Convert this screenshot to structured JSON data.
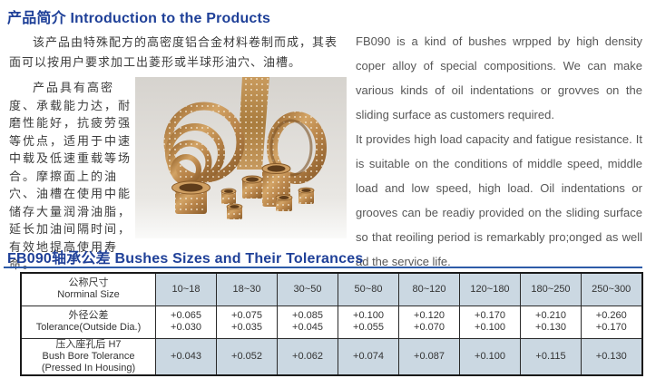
{
  "page": {
    "section1": {
      "title": "产品简介 Introduction to the Products",
      "cn_paragraph1": "该产品由特殊配方的高密度铝合金材料卷制而成，其表面可以按用户要求加工出菱形或半球形油穴、油槽。",
      "cn_paragraph2": "产品具有高密度、承载能力达，耐磨性能好，抗疲劳强等优点，适用于中速中载及低速重载等场合。摩擦面上的油穴、油槽在使用中能储存大量润滑油脂，延长加油间隔时间，有效地提高使用寿命。",
      "en_paragraph1": "FB090 is a kind of bushes wrpped by high density coper alloy of special compositions. We can make various kinds of oil indentations or grovves on the sliding surface as customers required.",
      "en_paragraph2": "It provides high load capacity and fatigue resistance. It is suitable on the conditions of middle speed, middle load and low speed, high load. Oil indentations or grooves can be readiy provided on the sliding surface so that reoiling period is remarkably pro;onged as well ad the service life."
    },
    "section2": {
      "title": "FB090轴承公差 Bushes Sizes and Their Tolerances",
      "table": {
        "header_label_cn": "公称尺寸",
        "header_label_en": "Norminal Size",
        "size_ranges": [
          "10~18",
          "18~30",
          "30~50",
          "50~80",
          "80~120",
          "120~180",
          "180~250",
          "250~300"
        ],
        "rows": [
          {
            "label_lines": [
              "外径公差",
              "Tolerance(Outside Dia.)"
            ],
            "shaded": false,
            "values": [
              [
                "+0.065",
                "+0.030"
              ],
              [
                "+0.075",
                "+0.035"
              ],
              [
                "+0.085",
                "+0.045"
              ],
              [
                "+0.100",
                "+0.055"
              ],
              [
                "+0.120",
                "+0.070"
              ],
              [
                "+0.170",
                "+0.100"
              ],
              [
                "+0.210",
                "+0.130"
              ],
              [
                "+0.260",
                "+0.170"
              ]
            ]
          },
          {
            "label_lines": [
              "压入座孔后 H7",
              "Bush Bore Tolerance",
              "(Pressed In Housing)"
            ],
            "shaded": true,
            "values": [
              [
                "+0.043"
              ],
              [
                "+0.052"
              ],
              [
                "+0.062"
              ],
              [
                "+0.074"
              ],
              [
                "+0.087"
              ],
              [
                "+0.100"
              ],
              [
                "+0.115"
              ],
              [
                "+0.130"
              ]
            ]
          }
        ]
      }
    },
    "colors": {
      "heading_blue": "#1f4098",
      "rule_blue": "#2d5ba8",
      "table_shade": "#cbd8e2",
      "bronze": "#c0904f"
    }
  }
}
